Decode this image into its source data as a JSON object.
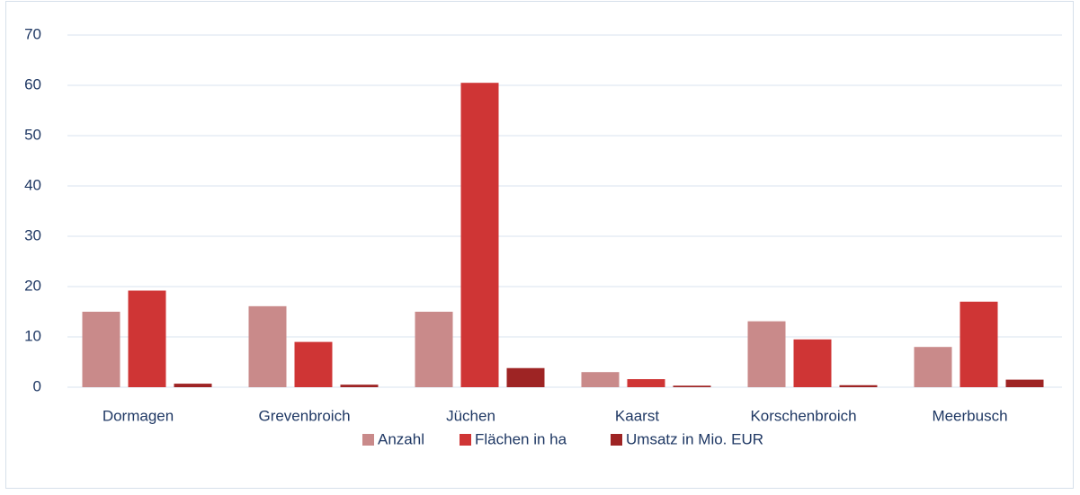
{
  "chart_data": {
    "type": "bar",
    "categories": [
      "Dormagen",
      "Grevenbroich",
      "Jüchen",
      "Kaarst",
      "Korschenbroich",
      "Meerbusch"
    ],
    "series": [
      {
        "name": "Anzahl",
        "color": "#c98a8a",
        "values": [
          15,
          16.1,
          15,
          3,
          13.1,
          8
        ]
      },
      {
        "name": "Flächen in ha",
        "color": "#cf3535",
        "values": [
          19.2,
          9,
          60.5,
          1.6,
          9.5,
          17
        ]
      },
      {
        "name": "Umsatz in Mio. EUR",
        "color": "#9e2424",
        "values": [
          0.7,
          0.5,
          3.8,
          0.3,
          0.4,
          1.5
        ]
      }
    ],
    "ylim": [
      0,
      70
    ],
    "yticks": [
      0,
      10,
      20,
      30,
      40,
      50,
      60,
      70
    ],
    "grid": true,
    "legend": "bottom"
  }
}
